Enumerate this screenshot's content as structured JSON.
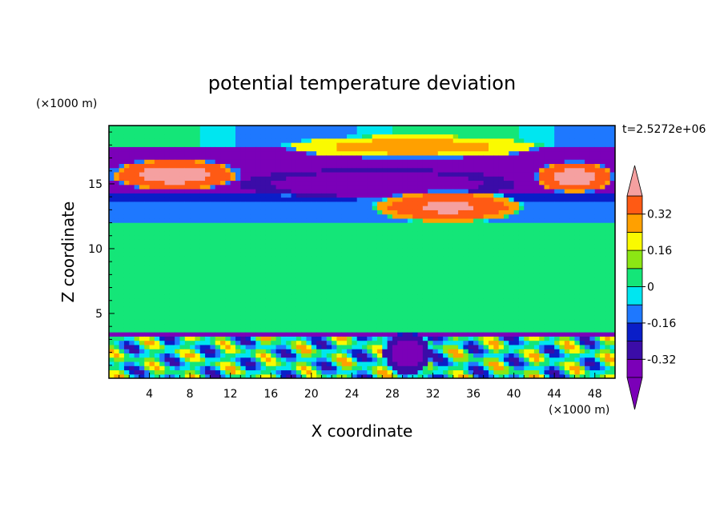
{
  "chart_data": {
    "type": "heatmap",
    "title": "potential temperature deviation",
    "xlabel": "X coordinate",
    "ylabel": "Z coordinate",
    "x_unit": "(×1000 m)",
    "y_unit": "(×1000 m)",
    "time_label": "t=2.5272e+06",
    "xlim": [
      0,
      50
    ],
    "ylim": [
      0,
      19.5
    ],
    "x_ticks": [
      4,
      8,
      12,
      16,
      20,
      24,
      28,
      32,
      36,
      40,
      44,
      48
    ],
    "y_ticks": [
      5,
      10,
      15
    ],
    "colorbar": {
      "levels": [
        -0.4,
        -0.32,
        -0.24,
        -0.16,
        -0.08,
        0,
        0.08,
        0.16,
        0.24,
        0.32,
        0.4
      ],
      "labels": [
        "-0.32",
        "-0.16",
        "0",
        "0.16",
        "0.32"
      ],
      "label_values": [
        -0.32,
        -0.16,
        0,
        0.16,
        0.32
      ],
      "colors_low_to_high": [
        "#7b00b8",
        "#3b0ca8",
        "#0a1ec8",
        "#1e78ff",
        "#00e6f0",
        "#14e678",
        "#8ce614",
        "#fafa00",
        "#ffa000",
        "#ff5a14",
        "#ff1e32"
      ],
      "over_color": "#f5a0a0",
      "under_color": "#7b00b8"
    },
    "bands": [
      {
        "z0": 18.0,
        "z1": 19.5,
        "value": 0.0
      },
      {
        "z0": 16.5,
        "z1": 18.0,
        "value": -0.36
      },
      {
        "z0": 14.2,
        "z1": 16.5,
        "value": -0.4
      },
      {
        "z0": 13.5,
        "z1": 14.2,
        "value": -0.2
      },
      {
        "z0": 12.0,
        "z1": 13.5,
        "value": -0.1
      },
      {
        "z0": 10.5,
        "z1": 12.0,
        "value": 0.04
      },
      {
        "z0": 3.6,
        "z1": 10.5,
        "value": 0.06
      },
      {
        "z0": 3.2,
        "z1": 3.6,
        "value": -0.34
      },
      {
        "z0": 0.0,
        "z1": 3.2,
        "value": 0.0
      }
    ],
    "features": [
      {
        "name": "warm-left-upper",
        "x": [
          0,
          13
        ],
        "z": [
          14.5,
          17.0
        ],
        "value": 0.45
      },
      {
        "name": "warm-right-upper",
        "x": [
          42,
          50
        ],
        "z": [
          14.3,
          16.8
        ],
        "value": 0.45
      },
      {
        "name": "warm-top-center",
        "x": [
          17,
          43
        ],
        "z": [
          17.0,
          18.8
        ],
        "value": 0.28
      },
      {
        "name": "cold-core",
        "x": [
          13,
          40
        ],
        "z": [
          13.8,
          16.2
        ],
        "value": -0.42
      },
      {
        "name": "warm-patches-mid",
        "x": [
          26,
          41
        ],
        "z": [
          12.0,
          14.5
        ],
        "value": 0.42
      },
      {
        "name": "cold-lower-core",
        "x": [
          27,
          32
        ],
        "z": [
          0.2,
          3.6
        ],
        "value": -0.38
      }
    ]
  }
}
